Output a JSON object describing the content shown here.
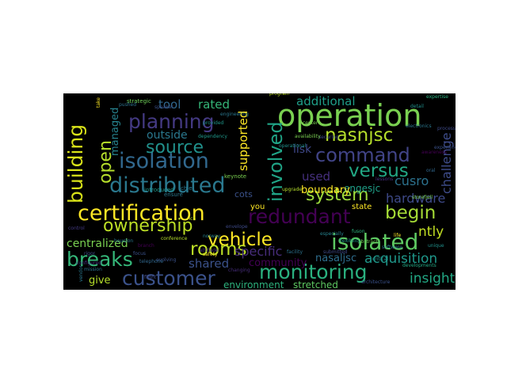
{
  "cloud": {
    "background": "#000000",
    "words": [
      {
        "text": "operation",
        "color": "#7ad151"
      },
      {
        "text": "certification",
        "color": "#fde725"
      },
      {
        "text": "distributed",
        "color": "#2a788e"
      },
      {
        "text": "isolation",
        "color": "#31688e"
      },
      {
        "text": "planning",
        "color": "#443a83"
      },
      {
        "text": "building",
        "color": "#d8e219"
      },
      {
        "text": "ownership",
        "color": "#bddf26"
      },
      {
        "text": "source",
        "color": "#21918c"
      },
      {
        "text": "customer",
        "color": "#3b528b"
      },
      {
        "text": "redundant",
        "color": "#440154"
      },
      {
        "text": "monitoring",
        "color": "#2ab07f"
      },
      {
        "text": "involved",
        "color": "#20a486"
      },
      {
        "text": "command",
        "color": "#414487"
      },
      {
        "text": "nasnjsc",
        "color": "#b5de2b"
      },
      {
        "text": "versus",
        "color": "#22a884"
      },
      {
        "text": "system",
        "color": "#9bd93c"
      },
      {
        "text": "vehicle",
        "color": "#fde725"
      },
      {
        "text": "isolated",
        "color": "#5ec962"
      },
      {
        "text": "breaks",
        "color": "#35b779"
      },
      {
        "text": "rooms",
        "color": "#bddf26"
      },
      {
        "text": "open",
        "color": "#b5de2b"
      },
      {
        "text": "begin",
        "color": "#a5db36"
      },
      {
        "text": "hardware",
        "color": "#3e4a89"
      },
      {
        "text": "acquisition",
        "color": "#1f988b"
      },
      {
        "text": "insight",
        "color": "#22a884"
      },
      {
        "text": "specific",
        "color": "#472d7b"
      },
      {
        "text": "challenge",
        "color": "#3e4c8a"
      },
      {
        "text": "cusro",
        "color": "#2c728e"
      },
      {
        "text": "additional",
        "color": "#1f9e89"
      },
      {
        "text": "centralized",
        "color": "#7ad151"
      },
      {
        "text": "shared",
        "color": "#3b528b"
      },
      {
        "text": "tool",
        "color": "#31688e"
      },
      {
        "text": "rated",
        "color": "#35b779"
      },
      {
        "text": "managed",
        "color": "#26828e"
      },
      {
        "text": "outside",
        "color": "#2a788e"
      },
      {
        "text": "supported",
        "color": "#fde725"
      },
      {
        "text": "used",
        "color": "#46307e"
      },
      {
        "text": "lisk",
        "color": "#3f4889"
      },
      {
        "text": "engesjc",
        "color": "#1fa088"
      },
      {
        "text": "boundary",
        "color": "#fde725"
      },
      {
        "text": "ntly",
        "color": "#c2df23"
      },
      {
        "text": "nasaljsc",
        "color": "#2e6e8e"
      },
      {
        "text": "give",
        "color": "#b5de2b"
      },
      {
        "text": "environment",
        "color": "#2db27d"
      },
      {
        "text": "stretched",
        "color": "#5ec962"
      },
      {
        "text": "community",
        "color": "#440154"
      },
      {
        "text": "cots",
        "color": "#3b528b"
      },
      {
        "text": "state",
        "color": "#fde725"
      },
      {
        "text": "you",
        "color": "#fde725"
      },
      {
        "text": "ensure",
        "color": "#2a788e"
      },
      {
        "text": "chief",
        "color": "#2a788e"
      },
      {
        "text": "introduced",
        "color": "#1f988b"
      },
      {
        "text": "keynote",
        "color": "#7ad151"
      },
      {
        "text": "strategic",
        "color": "#6ece58"
      },
      {
        "text": "program",
        "color": "#bddf26"
      },
      {
        "text": "expertise",
        "color": "#2ab07f"
      },
      {
        "text": "electronics",
        "color": "#2a788e"
      },
      {
        "text": "conference",
        "color": "#b5de2b"
      },
      {
        "text": "evolving",
        "color": "#3b528b"
      },
      {
        "text": "norway",
        "color": "#26828e"
      },
      {
        "text": "changing",
        "color": "#472d7b"
      },
      {
        "text": "envelope",
        "color": "#3e4a89"
      },
      {
        "text": "telephone",
        "color": "#31688e"
      },
      {
        "text": "facility",
        "color": "#2c728e"
      },
      {
        "text": "submitted",
        "color": "#3e4a89"
      },
      {
        "text": "abstract",
        "color": "#6ece58"
      },
      {
        "text": "critical",
        "color": "#21918c"
      },
      {
        "text": "flexibility",
        "color": "#1f9e89"
      },
      {
        "text": "lessons",
        "color": "#46307e"
      },
      {
        "text": "upgrade",
        "color": "#b5de2b"
      },
      {
        "text": "storefjell",
        "color": "#7ad151"
      },
      {
        "text": "especially",
        "color": "#26828e"
      },
      {
        "text": "developments",
        "color": "#22a884"
      },
      {
        "text": "unique",
        "color": "#21918c"
      },
      {
        "text": "life",
        "color": "#fde725"
      },
      {
        "text": "focus",
        "color": "#3b528b"
      },
      {
        "text": "control",
        "color": "#443a83"
      },
      {
        "text": "speaker",
        "color": "#3b528b"
      },
      {
        "text": "rigor",
        "color": "#3e4a89"
      },
      {
        "text": "rich",
        "color": "#bddf26"
      },
      {
        "text": "oral",
        "color": "#31688e"
      },
      {
        "text": "center",
        "color": "#7ad151"
      },
      {
        "text": "houston",
        "color": "#2a788e"
      },
      {
        "text": "process",
        "color": "#3e4a89"
      },
      {
        "text": "detail",
        "color": "#21918c"
      },
      {
        "text": "take",
        "color": "#fde725"
      },
      {
        "text": "dependency",
        "color": "#1f988b"
      },
      {
        "text": "pushed",
        "color": "#2c728e"
      },
      {
        "text": "branch",
        "color": "#440154"
      },
      {
        "text": "securing",
        "color": "#3e4a89"
      },
      {
        "text": "safety",
        "color": "#fde725"
      },
      {
        "text": "experience",
        "color": "#3b528b"
      },
      {
        "text": "mission",
        "color": "#2c728e"
      },
      {
        "text": "configured",
        "color": "#46307e"
      },
      {
        "text": "availability",
        "color": "#7ad151"
      },
      {
        "text": "vendor",
        "color": "#2a788e"
      },
      {
        "text": "operational",
        "color": "#21918c"
      },
      {
        "text": "flight",
        "color": "#3e4a89"
      },
      {
        "text": "awareness",
        "color": "#440154"
      },
      {
        "text": "software",
        "color": "#2a788e"
      },
      {
        "text": "fuson",
        "color": "#2db27d"
      },
      {
        "text": "provided",
        "color": "#1f988b"
      },
      {
        "text": "architecture",
        "color": "#3b528b"
      },
      {
        "text": "attitude",
        "color": "#46307e"
      },
      {
        "text": "engineering",
        "color": "#2a788e"
      }
    ]
  }
}
